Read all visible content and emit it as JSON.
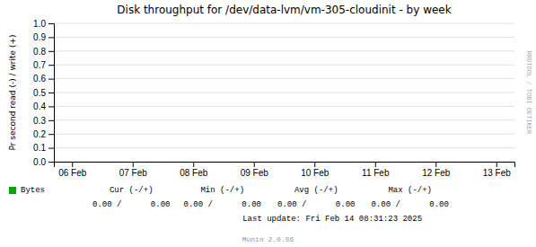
{
  "chart_data": {
    "type": "line",
    "title": "Disk throughput for /dev/data-lvm/vm-305-cloudinit - by week",
    "y_label": "Pr second read (-) / write (+)",
    "categories": [
      "06 Feb",
      "07 Feb",
      "08 Feb",
      "09 Feb",
      "10 Feb",
      "11 Feb",
      "12 Feb",
      "13 Feb"
    ],
    "series": [
      {
        "name": "Bytes",
        "color": "#00aa00",
        "values": [
          null,
          null,
          null,
          null,
          null,
          null,
          null,
          null
        ]
      }
    ],
    "ylim": [
      0.0,
      1.0
    ],
    "yticks": [
      {
        "value": 0.0,
        "label": "0.0"
      },
      0.1,
      0.2,
      0.3,
      0.4,
      0.5,
      0.6,
      0.7,
      0.8,
      0.9,
      {
        "value": 1.0,
        "label": "1.0"
      }
    ],
    "grid": true,
    "annotations": [
      "Cur (-/+)",
      "Min (-/+)",
      "Avg (-/+)",
      "Max (-/+)",
      "0.00 /      0.00",
      "0.00 /      0.00",
      "0.00 /      0.00",
      "0.00 /      0.00",
      "Last update: Fri Feb 14 08:31:23 2025",
      "Munin 2.0.56",
      "RRDTOOL / TOBI OETIKER"
    ]
  }
}
